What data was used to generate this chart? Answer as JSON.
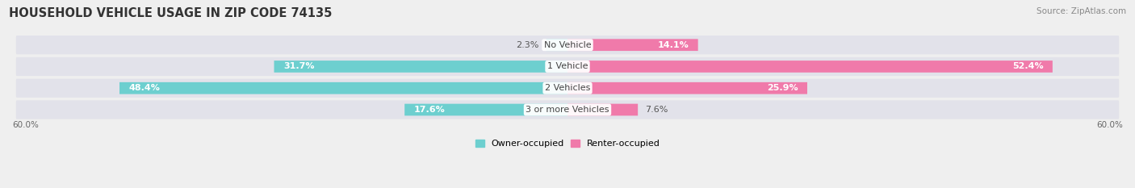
{
  "title": "HOUSEHOLD VEHICLE USAGE IN ZIP CODE 74135",
  "source": "Source: ZipAtlas.com",
  "categories": [
    "No Vehicle",
    "1 Vehicle",
    "2 Vehicles",
    "3 or more Vehicles"
  ],
  "owner_values": [
    2.3,
    31.7,
    48.4,
    17.6
  ],
  "renter_values": [
    14.1,
    52.4,
    25.9,
    7.6
  ],
  "owner_color": "#6dcfcf",
  "renter_color": "#f07aaa",
  "axis_max": 60.0,
  "axis_label_left": "60.0%",
  "axis_label_right": "60.0%",
  "legend_owner": "Owner-occupied",
  "legend_renter": "Renter-occupied",
  "bg_color": "#efefef",
  "bar_bg_color": "#e2e2ea",
  "title_fontsize": 10.5,
  "source_fontsize": 7.5,
  "label_fontsize": 8,
  "cat_fontsize": 8
}
